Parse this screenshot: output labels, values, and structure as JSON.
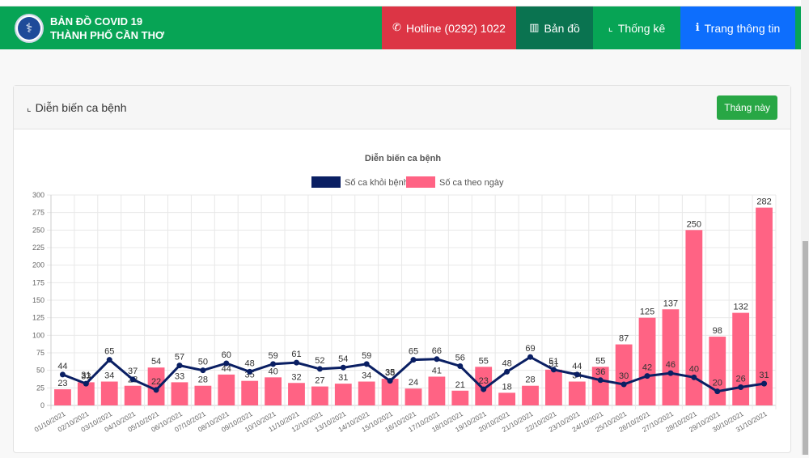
{
  "navbar": {
    "brand_line1": "BẢN ĐỒ COVID 19",
    "brand_line2": "THÀNH PHỐ CẦN THƠ",
    "logo_icon": "caduceus-icon",
    "items": [
      {
        "label": "Hotline (0292) 1022",
        "icon": "phone-icon",
        "glyph": "✆",
        "color": "#dc3545"
      },
      {
        "label": "Bản đồ",
        "icon": "map-icon",
        "glyph": "▥",
        "color": "#0a7350"
      },
      {
        "label": "Thống kê",
        "icon": "chart-line-icon",
        "glyph": "⌞",
        "color": "#07a455"
      },
      {
        "label": "Trang thông tin",
        "icon": "info-circle-icon",
        "glyph": "ℹ",
        "color": "#0d6efd"
      }
    ]
  },
  "card": {
    "title": "Diễn biến ca bệnh",
    "title_icon": "chart-line-icon",
    "title_glyph": "⌞",
    "month_button": "Tháng này"
  },
  "chart_data": {
    "type": "bar",
    "title": "Diễn biến ca bệnh",
    "xlabel": "",
    "ylabel": "",
    "ylim": [
      0,
      300
    ],
    "yticks": [
      0,
      25,
      50,
      75,
      100,
      125,
      150,
      175,
      200,
      225,
      250,
      275,
      300
    ],
    "grid": true,
    "legend_position": "top-center",
    "categories": [
      "01/10/2021",
      "02/10/2021",
      "03/10/2021",
      "04/10/2021",
      "05/10/2021",
      "06/10/2021",
      "07/10/2021",
      "08/10/2021",
      "09/10/2021",
      "10/10/2021",
      "11/10/2021",
      "12/10/2021",
      "13/10/2021",
      "14/10/2021",
      "15/10/2021",
      "16/10/2021",
      "17/10/2021",
      "18/10/2021",
      "19/10/2021",
      "20/10/2021",
      "21/10/2021",
      "22/10/2021",
      "23/10/2021",
      "24/10/2021",
      "25/10/2021",
      "26/10/2021",
      "27/10/2021",
      "28/10/2021",
      "29/10/2021",
      "30/10/2021",
      "31/10/2021"
    ],
    "series": [
      {
        "name": "Số ca khỏi bệnh",
        "type": "line",
        "color": "#0a1f63",
        "values": [
          44,
          31,
          65,
          37,
          22,
          57,
          50,
          60,
          48,
          59,
          61,
          52,
          54,
          59,
          35,
          65,
          66,
          56,
          23,
          48,
          69,
          51,
          44,
          36,
          30,
          42,
          46,
          40,
          20,
          26,
          31
        ]
      },
      {
        "name": "Số ca theo ngày",
        "type": "bar",
        "color": "#ff6384",
        "values": [
          23,
          33,
          34,
          28,
          54,
          33,
          28,
          44,
          35,
          40,
          32,
          27,
          31,
          34,
          38,
          24,
          41,
          21,
          55,
          18,
          28,
          51,
          34,
          55,
          87,
          125,
          137,
          250,
          98,
          132,
          282
        ]
      }
    ]
  }
}
